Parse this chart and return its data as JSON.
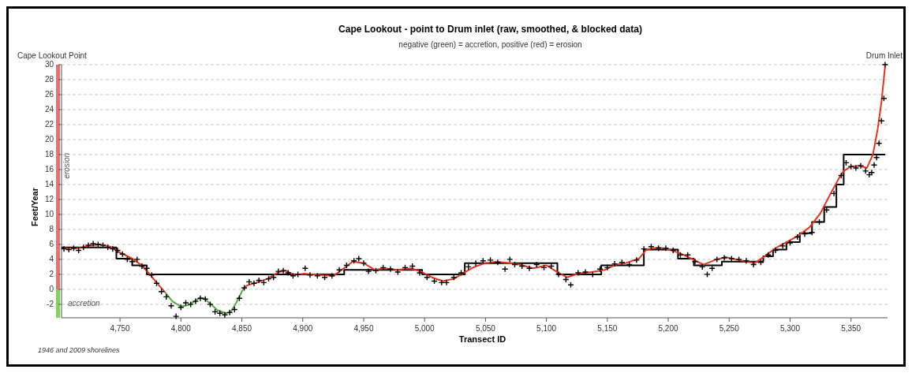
{
  "chart_data": {
    "type": "line",
    "title": "Cape Lookout - point to Drum inlet (raw, smoothed, & blocked data)",
    "subtitle": "negative (green) = accretion, positive (red) = erosion",
    "xlabel": "Transect ID",
    "ylabel": "Feet/Year",
    "xlim": [
      4702,
      5380
    ],
    "xticks": [
      {
        "value": 4750,
        "label": "4,750"
      },
      {
        "value": 4800,
        "label": "4,800"
      },
      {
        "value": 4850,
        "label": "4,850"
      },
      {
        "value": 4900,
        "label": "4,900"
      },
      {
        "value": 4950,
        "label": "4,950"
      },
      {
        "value": 5000,
        "label": "5,000"
      },
      {
        "value": 5050,
        "label": "5,050"
      },
      {
        "value": 5100,
        "label": "5,100"
      },
      {
        "value": 5150,
        "label": "5,150"
      },
      {
        "value": 5200,
        "label": "5,200"
      },
      {
        "value": 5250,
        "label": "5,250"
      },
      {
        "value": 5300,
        "label": "5,300"
      },
      {
        "value": 5350,
        "label": "5,350"
      }
    ],
    "ylim": [
      -3.8,
      30
    ],
    "yticks": [
      -2,
      0,
      2,
      4,
      6,
      8,
      10,
      12,
      14,
      16,
      18,
      20,
      22,
      24,
      26,
      28,
      30
    ],
    "grid": "y",
    "series": [
      {
        "color": "#000000",
        "x": [
          4702,
          4747,
          4747,
          4760,
          4760,
          4772,
          4772,
          4934,
          4934,
          4998,
          4998,
          5033,
          5033,
          5109,
          5109,
          5145,
          5145,
          5180,
          5180,
          5208,
          5208,
          5221,
          5221,
          5244,
          5244,
          5278,
          5278,
          5286,
          5286,
          5297,
          5297,
          5308,
          5308,
          5318,
          5318,
          5328,
          5328,
          5338,
          5338,
          5344,
          5344,
          5378
        ],
        "values": [
          5.6,
          5.6,
          4.1,
          4.1,
          3.2,
          3.2,
          2.0,
          2.0,
          2.6,
          2.6,
          2.0,
          2.0,
          3.5,
          3.5,
          2.0,
          2.0,
          3.2,
          3.2,
          5.3,
          5.3,
          4.1,
          4.1,
          3.2,
          3.2,
          3.7,
          3.7,
          4.4,
          4.4,
          5.3,
          5.3,
          6.3,
          6.3,
          7.5,
          7.5,
          9.0,
          9.0,
          11.0,
          11.0,
          14.0,
          14.0,
          18.0,
          18.0
        ]
      },
      {
        "type": "line",
        "color": "#e8341c",
        "x": [
          4704,
          4716,
          4724,
          4733,
          4742,
          4750,
          4759,
          4767,
          4774,
          4780,
          4787
        ],
        "values": [
          5.5,
          5.5,
          5.8,
          6.0,
          5.7,
          4.9,
          4.2,
          3.3,
          2.1,
          0.9,
          -0.4
        ]
      },
      {
        "type": "line",
        "color": "#4caf3a",
        "x": [
          4787,
          4793,
          4800,
          4806,
          4815,
          4819,
          4824,
          4830,
          4837,
          4841,
          4845,
          4851
        ],
        "values": [
          -0.4,
          -1.6,
          -2.3,
          -2.1,
          -1.2,
          -1.2,
          -1.9,
          -2.8,
          -3.2,
          -3.0,
          -1.9,
          0.0
        ]
      },
      {
        "type": "line",
        "color": "#e8341c",
        "x": [
          4851,
          4854,
          4862,
          4871,
          4880,
          4886,
          4893,
          4901,
          4914,
          4925,
          4932,
          4941,
          4950,
          4959,
          4967,
          4978,
          4989,
          4998,
          5006,
          5015,
          5024,
          5033,
          5041,
          5050,
          5059,
          5070,
          5078,
          5089,
          5100,
          5109,
          5117,
          5126,
          5137,
          5148,
          5157,
          5165,
          5176,
          5182,
          5192,
          5201,
          5210,
          5219,
          5229,
          5238,
          5247,
          5258,
          5271,
          5279,
          5288,
          5297,
          5307,
          5316,
          5325,
          5333,
          5340,
          5344,
          5350,
          5357,
          5363,
          5368,
          5372,
          5375,
          5378
        ],
        "values": [
          0.0,
          0.5,
          0.9,
          1.4,
          2.3,
          2.5,
          1.9,
          2.1,
          1.9,
          1.8,
          2.6,
          3.7,
          3.5,
          2.6,
          2.8,
          2.6,
          2.8,
          2.3,
          1.6,
          1.1,
          1.4,
          2.3,
          3.0,
          3.5,
          3.7,
          3.5,
          3.3,
          2.8,
          3.2,
          2.3,
          1.6,
          2.1,
          2.3,
          2.6,
          3.3,
          3.5,
          4.1,
          5.3,
          5.6,
          5.3,
          4.8,
          4.1,
          3.3,
          3.9,
          4.3,
          3.9,
          3.5,
          4.4,
          5.5,
          6.3,
          7.2,
          8.3,
          10.2,
          12.7,
          14.8,
          15.8,
          16.4,
          16.5,
          16.2,
          18.0,
          21.5,
          25.0,
          29.8
        ]
      },
      {
        "type": "scatter",
        "marker": "cross",
        "color": "#000000",
        "x": [
          4704,
          4708,
          4712,
          4716,
          4720,
          4724,
          4728,
          4732,
          4736,
          4740,
          4744,
          4748,
          4752,
          4756,
          4760,
          4764,
          4768,
          4772,
          4776,
          4780,
          4784,
          4788,
          4792,
          4796,
          4800,
          4804,
          4808,
          4812,
          4816,
          4820,
          4824,
          4828,
          4832,
          4836,
          4840,
          4844,
          4848,
          4852,
          4856,
          4860,
          4864,
          4868,
          4872,
          4876,
          4880,
          4884,
          4888,
          4892,
          4896,
          4902,
          4906,
          4912,
          4918,
          4924,
          4930,
          4936,
          4942,
          4946,
          4950,
          4954,
          4960,
          4966,
          4972,
          4978,
          4984,
          4990,
          4996,
          5002,
          5008,
          5014,
          5018,
          5024,
          5030,
          5036,
          5042,
          5048,
          5054,
          5060,
          5066,
          5070,
          5074,
          5080,
          5086,
          5092,
          5098,
          5104,
          5110,
          5116,
          5120,
          5126,
          5132,
          5138,
          5144,
          5150,
          5156,
          5162,
          5168,
          5174,
          5180,
          5186,
          5192,
          5198,
          5204,
          5210,
          5216,
          5222,
          5228,
          5232,
          5236,
          5240,
          5246,
          5252,
          5258,
          5264,
          5270,
          5276,
          5282,
          5288,
          5294,
          5300,
          5306,
          5312,
          5318,
          5324,
          5330,
          5336,
          5342,
          5346,
          5350,
          5354,
          5358,
          5362,
          5365,
          5367,
          5369,
          5371,
          5373,
          5375,
          5377,
          5378
        ],
        "values": [
          5.4,
          5.3,
          5.5,
          5.2,
          5.6,
          5.9,
          6.1,
          6.0,
          5.9,
          5.6,
          5.4,
          5.2,
          4.7,
          4.0,
          3.7,
          4.0,
          3.1,
          2.8,
          1.9,
          0.8,
          -0.3,
          -1.0,
          -2.2,
          -3.6,
          -2.4,
          -1.8,
          -2.0,
          -1.6,
          -1.2,
          -1.3,
          -2.0,
          -3.0,
          -3.2,
          -3.4,
          -3.1,
          -2.7,
          -1.2,
          0.2,
          1.0,
          0.8,
          1.2,
          0.9,
          1.4,
          1.6,
          2.4,
          2.5,
          2.2,
          1.8,
          2.0,
          2.8,
          1.9,
          1.8,
          1.6,
          1.8,
          2.6,
          3.2,
          3.8,
          4.1,
          3.5,
          2.4,
          2.5,
          2.9,
          2.7,
          2.3,
          2.9,
          3.1,
          2.2,
          1.6,
          1.1,
          0.9,
          0.9,
          1.6,
          2.2,
          3.0,
          3.5,
          3.8,
          3.9,
          3.6,
          2.7,
          4.0,
          3.3,
          3.1,
          2.8,
          3.3,
          2.9,
          3.1,
          2.0,
          1.3,
          0.6,
          2.2,
          2.3,
          2.0,
          2.7,
          2.9,
          3.4,
          3.6,
          3.3,
          3.9,
          5.4,
          5.7,
          5.5,
          5.5,
          5.2,
          4.6,
          4.6,
          3.7,
          3.0,
          2.0,
          2.8,
          4.0,
          4.2,
          4.1,
          4.0,
          3.8,
          3.3,
          3.6,
          4.6,
          5.2,
          5.8,
          6.2,
          7.0,
          7.4,
          7.6,
          9.0,
          10.6,
          12.8,
          15.2,
          16.9,
          16.4,
          16.2,
          16.5,
          15.8,
          15.3,
          15.6,
          16.6,
          17.6,
          19.5,
          22.5,
          25.5,
          30.0
        ]
      }
    ],
    "annotations": [
      "Cape Lookout Point",
      "erosion",
      "accretion",
      {
        "text": "Drum Inlet",
        "x": 5378,
        "y": 30
      },
      "1946 and 2009 shorelines"
    ]
  }
}
